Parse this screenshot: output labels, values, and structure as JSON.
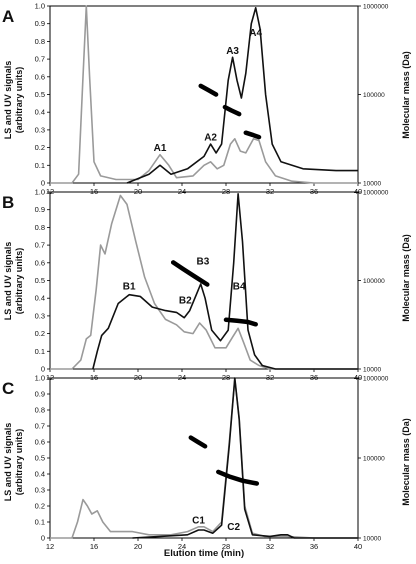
{
  "chart_data": {
    "type": "line",
    "xlabel": "Elution time (min)",
    "ylabel_left": [
      "LS and UV signals",
      "(arbitrary units)"
    ],
    "ylabel_right": "Molecular mass (Da)",
    "x_range": [
      12,
      40
    ],
    "x_ticks": [
      12,
      16,
      20,
      24,
      28,
      32,
      36,
      40
    ],
    "y_left_range": [
      0,
      1.0
    ],
    "y_left_ticks": [
      "0",
      "0.1",
      "0.2",
      "0.3",
      "0.4",
      "0.5",
      "0.6",
      "0.7",
      "0.8",
      "0.9",
      "1.0"
    ],
    "y_right_scale": "log",
    "y_right_range": [
      10000,
      1000000
    ],
    "y_right_ticks": [
      {
        "value": 10000,
        "label": "10000"
      },
      {
        "value": 100000,
        "label": "100000"
      },
      {
        "value": 1000000,
        "label": "1000000"
      }
    ],
    "panels": [
      {
        "letter": "A",
        "gray": [
          [
            12,
            0
          ],
          [
            14,
            0
          ],
          [
            14.6,
            0.05
          ],
          [
            15,
            0.6
          ],
          [
            15.3,
            1.0
          ],
          [
            15.6,
            0.6
          ],
          [
            16,
            0.12
          ],
          [
            16.6,
            0.04
          ],
          [
            18,
            0.02
          ],
          [
            20,
            0.02
          ],
          [
            21,
            0.07
          ],
          [
            22,
            0.16
          ],
          [
            22.8,
            0.1
          ],
          [
            23.5,
            0.03
          ],
          [
            25,
            0.04
          ],
          [
            26,
            0.1
          ],
          [
            26.6,
            0.12
          ],
          [
            27.2,
            0.08
          ],
          [
            27.8,
            0.1
          ],
          [
            28.4,
            0.22
          ],
          [
            28.8,
            0.25
          ],
          [
            29.3,
            0.18
          ],
          [
            29.8,
            0.17
          ],
          [
            30.5,
            0.25
          ],
          [
            31,
            0.24
          ],
          [
            31.6,
            0.12
          ],
          [
            32.5,
            0.04
          ],
          [
            34,
            0.01
          ],
          [
            36,
            0
          ],
          [
            40,
            0
          ]
        ],
        "black": [
          [
            19,
            0
          ],
          [
            21,
            0.05
          ],
          [
            22,
            0.1
          ],
          [
            23,
            0.05
          ],
          [
            24.5,
            0.08
          ],
          [
            26,
            0.15
          ],
          [
            26.6,
            0.22
          ],
          [
            27.1,
            0.17
          ],
          [
            27.6,
            0.22
          ],
          [
            28.2,
            0.58
          ],
          [
            28.6,
            0.71
          ],
          [
            29,
            0.58
          ],
          [
            29.4,
            0.48
          ],
          [
            29.8,
            0.62
          ],
          [
            30.3,
            0.9
          ],
          [
            30.7,
            0.99
          ],
          [
            31.1,
            0.87
          ],
          [
            31.6,
            0.5
          ],
          [
            32.2,
            0.22
          ],
          [
            33,
            0.12
          ],
          [
            35,
            0.08
          ],
          [
            38,
            0.07
          ],
          [
            40,
            0.07
          ]
        ],
        "mass_segments": [
          [
            [
              25.7,
              125000
            ],
            [
              26.4,
              112000
            ],
            [
              27.1,
              100000
            ]
          ],
          [
            [
              27.9,
              72000
            ],
            [
              28.5,
              66000
            ],
            [
              29.2,
              60000
            ]
          ],
          [
            [
              29.8,
              37000
            ],
            [
              30.4,
              35000
            ],
            [
              31.0,
              33000
            ]
          ]
        ],
        "labels": [
          {
            "text": "A1",
            "x": 22,
            "y": 0.18
          },
          {
            "text": "A2",
            "x": 26.6,
            "y": 0.24
          },
          {
            "text": "A3",
            "x": 28.6,
            "y": 0.73
          },
          {
            "text": "A4",
            "x": 30.7,
            "y": 0.83
          }
        ]
      },
      {
        "letter": "B",
        "gray": [
          [
            12,
            0
          ],
          [
            14,
            0
          ],
          [
            14.8,
            0.05
          ],
          [
            15.3,
            0.17
          ],
          [
            15.7,
            0.19
          ],
          [
            16.2,
            0.45
          ],
          [
            16.6,
            0.7
          ],
          [
            17,
            0.65
          ],
          [
            17.6,
            0.82
          ],
          [
            18.4,
            0.98
          ],
          [
            19,
            0.93
          ],
          [
            19.8,
            0.72
          ],
          [
            20.6,
            0.52
          ],
          [
            21.5,
            0.37
          ],
          [
            22.5,
            0.28
          ],
          [
            23.5,
            0.25
          ],
          [
            24.2,
            0.21
          ],
          [
            25,
            0.2
          ],
          [
            25.6,
            0.26
          ],
          [
            26.2,
            0.22
          ],
          [
            27,
            0.12
          ],
          [
            28,
            0.12
          ],
          [
            28.6,
            0.18
          ],
          [
            29.1,
            0.23
          ],
          [
            29.6,
            0.15
          ],
          [
            30.2,
            0.05
          ],
          [
            31,
            0.02
          ],
          [
            32,
            0
          ],
          [
            40,
            0
          ]
        ],
        "black": [
          [
            15.9,
            0
          ],
          [
            16.3,
            0.1
          ],
          [
            16.7,
            0.19
          ],
          [
            17.3,
            0.23
          ],
          [
            18.2,
            0.37
          ],
          [
            19.2,
            0.42
          ],
          [
            20.2,
            0.41
          ],
          [
            21.3,
            0.35
          ],
          [
            22.5,
            0.33
          ],
          [
            23.5,
            0.32
          ],
          [
            24.2,
            0.29
          ],
          [
            24.7,
            0.33
          ],
          [
            25.3,
            0.42
          ],
          [
            25.7,
            0.48
          ],
          [
            26.1,
            0.4
          ],
          [
            26.7,
            0.22
          ],
          [
            27.5,
            0.16
          ],
          [
            28.2,
            0.22
          ],
          [
            28.7,
            0.6
          ],
          [
            29.1,
            0.99
          ],
          [
            29.5,
            0.72
          ],
          [
            30,
            0.22
          ],
          [
            30.6,
            0.08
          ],
          [
            31.3,
            0.02
          ],
          [
            32.5,
            0
          ],
          [
            40,
            0
          ]
        ],
        "mass_segments": [
          [
            [
              23.2,
              160000
            ],
            [
              24.1,
              135000
            ],
            [
              25.2,
              110000
            ],
            [
              26.3,
              90000
            ]
          ],
          [
            [
              28.0,
              36000
            ],
            [
              29.0,
              35000
            ],
            [
              30.0,
              34000
            ],
            [
              30.7,
              32000
            ]
          ]
        ],
        "labels": [
          {
            "text": "B1",
            "x": 19.2,
            "y": 0.45
          },
          {
            "text": "B2",
            "x": 24.3,
            "y": 0.37
          },
          {
            "text": "B3",
            "x": 25.9,
            "y": 0.59
          },
          {
            "text": "B4",
            "x": 29.2,
            "y": 0.45
          }
        ]
      },
      {
        "letter": "C",
        "gray": [
          [
            12,
            0
          ],
          [
            14,
            0
          ],
          [
            14.5,
            0.1
          ],
          [
            15,
            0.24
          ],
          [
            15.4,
            0.2
          ],
          [
            15.8,
            0.15
          ],
          [
            16.3,
            0.17
          ],
          [
            16.8,
            0.1
          ],
          [
            17.5,
            0.04
          ],
          [
            18.5,
            0.04
          ],
          [
            19.5,
            0.04
          ],
          [
            21,
            0.02
          ],
          [
            23,
            0.02
          ],
          [
            24.5,
            0.04
          ],
          [
            25.5,
            0.07
          ],
          [
            26,
            0.07
          ],
          [
            26.8,
            0.04
          ],
          [
            27.6,
            0.1
          ],
          [
            28.3,
            0.6
          ],
          [
            28.8,
            0.99
          ],
          [
            29.2,
            0.75
          ],
          [
            29.7,
            0.2
          ],
          [
            30.4,
            0.03
          ],
          [
            31.5,
            0.01
          ],
          [
            33.5,
            0.01
          ],
          [
            36,
            0
          ],
          [
            40,
            0
          ]
        ],
        "black": [
          [
            19.5,
            0
          ],
          [
            22,
            0.01
          ],
          [
            24.5,
            0.02
          ],
          [
            25.5,
            0.05
          ],
          [
            26,
            0.05
          ],
          [
            26.8,
            0.03
          ],
          [
            27.6,
            0.08
          ],
          [
            28.3,
            0.58
          ],
          [
            28.8,
            1.0
          ],
          [
            29.2,
            0.74
          ],
          [
            29.7,
            0.18
          ],
          [
            30.4,
            0.02
          ],
          [
            32,
            0.01
          ],
          [
            33,
            0.02
          ],
          [
            33.6,
            0.02
          ],
          [
            34.2,
            0
          ],
          [
            40,
            0
          ]
        ],
        "mass_segments": [
          [
            [
              24.8,
              180000
            ],
            [
              25.4,
              160000
            ],
            [
              26.1,
              140000
            ]
          ],
          [
            [
              27.3,
              67000
            ],
            [
              28.4,
              58000
            ],
            [
              29.5,
              52000
            ],
            [
              30.8,
              48000
            ]
          ]
        ],
        "labels": [
          {
            "text": "C1",
            "x": 25.5,
            "y": 0.09
          },
          {
            "text": "C2",
            "x": 28.7,
            "y": 0.05
          }
        ]
      }
    ]
  }
}
